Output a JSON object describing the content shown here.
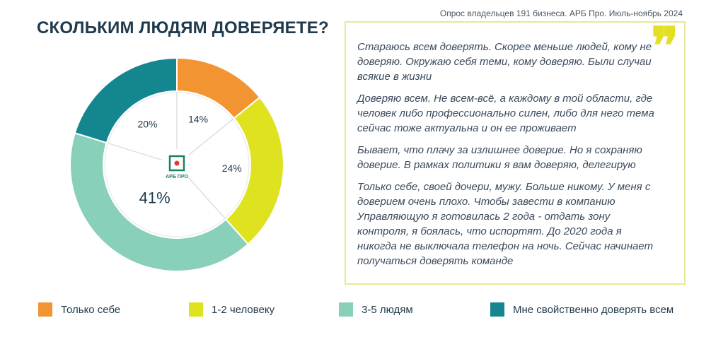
{
  "source": "Опрос владельцев 191 бизнеса. АРБ Про. Июль-ноябрь 2024",
  "title": "СКОЛЬКИМ ЛЮДЯМ ДОВЕРЯЕТЕ?",
  "logo_text": "АРБ ПРО",
  "quotes": [
    "Стараюсь всем доверять. Скорее меньше людей, кому не доверяю. Окружаю себя теми, кому доверяю. Были случаи всякие в жизни",
    "Доверяю всем. Не всем-всё, а каждому в той области, где человек либо профессионально  силен, либо для него тема сейчас тоже актуальна и он ее проживает",
    "Бывает, что плачу за излишнее доверие. Но я сохраняю доверие. В рамках политики я вам доверяю, делегирую",
    "Только себе, своей дочери, мужу. Больше никому. У меня с доверием очень плохо. Чтобы завести в компанию Управляющую я готовилась 2 года - отдать зону контроля, я боялась, что испортят. До 2020 года я никогда не выключала телефон на ночь. Сейчас начинает получаться доверять команде"
  ],
  "chart_data": {
    "type": "pie",
    "donut": true,
    "categories": [
      "Только себе",
      "1-2 человеку",
      "3-5 людям",
      "Мне свойственно доверять всем"
    ],
    "values": [
      14,
      24,
      41,
      20
    ],
    "labels": [
      "14%",
      "24%",
      "41%",
      "20%"
    ],
    "colors": [
      "#f39433",
      "#dfe21f",
      "#88d0ba",
      "#14868f"
    ],
    "start": "12 o'clock",
    "direction": "clockwise",
    "legend_position": "bottom"
  }
}
